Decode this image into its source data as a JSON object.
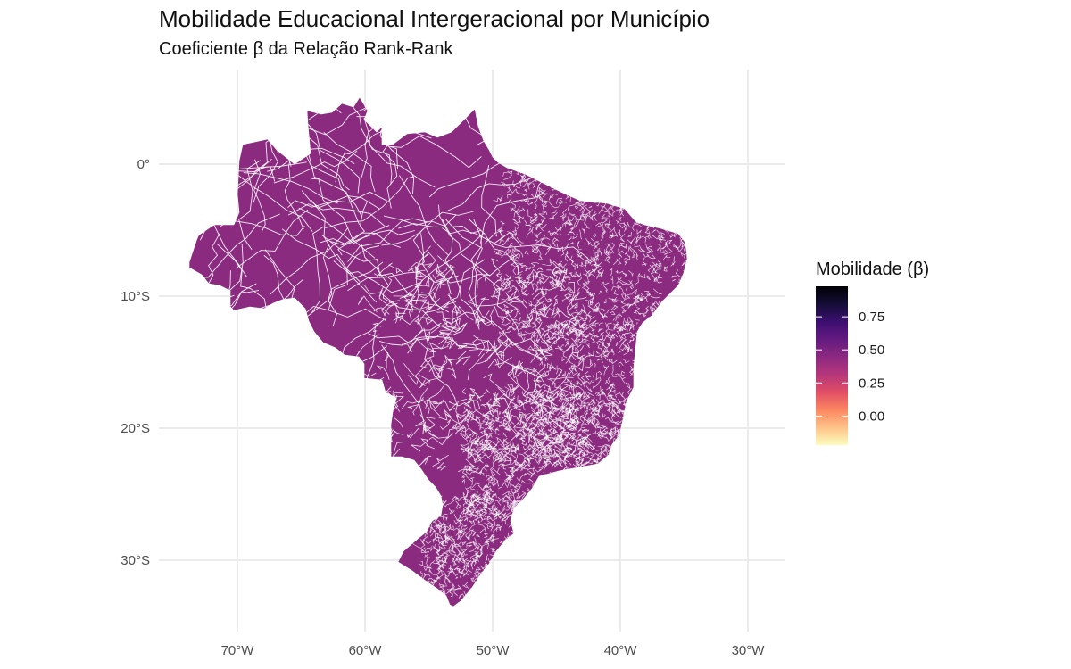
{
  "title": "Mobilidade Educacional Intergeracional por Município",
  "subtitle": "Coeficiente β da Relação Rank-Rank",
  "map": {
    "region": "Brazil",
    "fill_color": "#8B2B80",
    "border_color": "#ffffff",
    "lon_ticks": [
      "70°W",
      "60°W",
      "50°W",
      "40°W",
      "30°W"
    ],
    "lat_ticks": [
      "0°",
      "10°S",
      "20°S",
      "30°S"
    ],
    "lon_range": [
      -75,
      -28
    ],
    "lat_range": [
      5.5,
      -35
    ]
  },
  "legend": {
    "title": "Mobilidade (β)",
    "ticks": [
      "0.75",
      "0.50",
      "0.25",
      "0.00"
    ],
    "tick_values": [
      0.75,
      0.5,
      0.25,
      0.0
    ],
    "range": [
      -0.22,
      0.98
    ],
    "palette": [
      "#FCFDBF",
      "#FEC287",
      "#FB8761",
      "#E24E65",
      "#B5367A",
      "#8C2981",
      "#641A80",
      "#3B0F70",
      "#140E36",
      "#000004"
    ]
  }
}
